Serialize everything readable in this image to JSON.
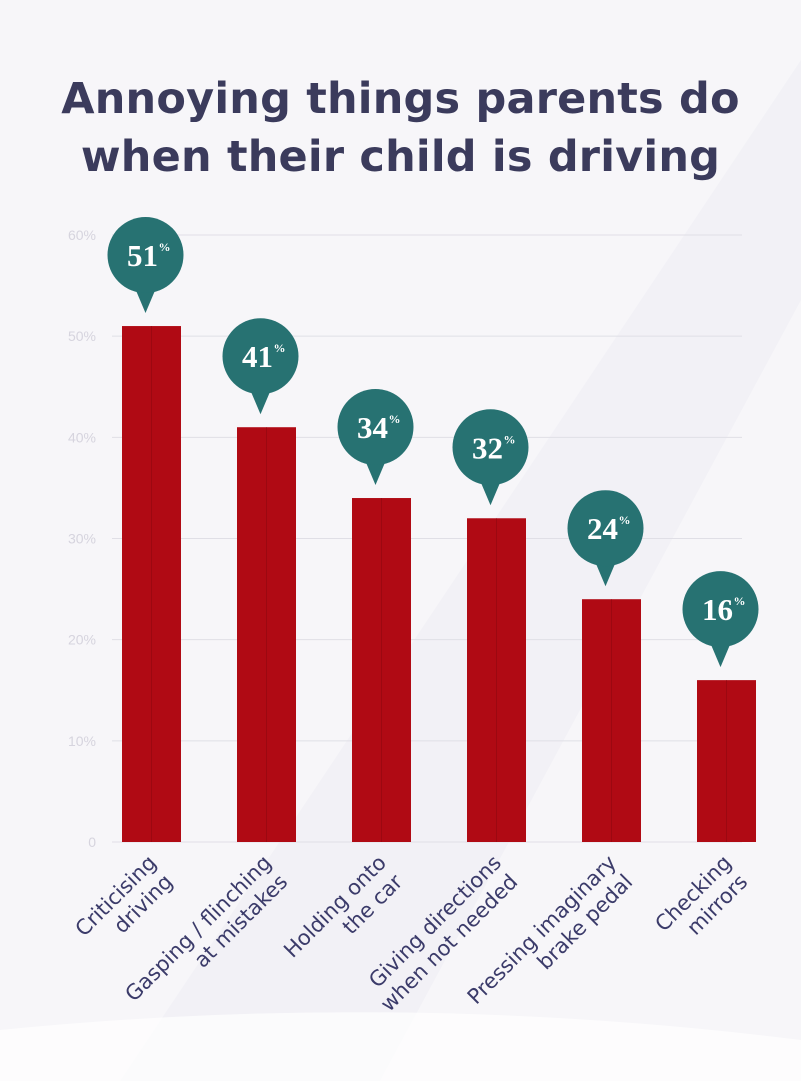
{
  "title_lines": [
    "Annoying things parents do",
    "when their child is driving"
  ],
  "colors": {
    "bar": "#b00a14",
    "bar_dark": "#8f0810",
    "marker": "#277272",
    "title": "#3b3b5c",
    "tick": "#d6d4de",
    "gridline": "#e0dfe6",
    "category_label": "#3b3b6a"
  },
  "chart_data": {
    "type": "bar",
    "title": "Annoying things parents do when their child is driving",
    "categories": [
      [
        "Criticising",
        "driving"
      ],
      [
        "Gasping / flinching",
        "at mistakes"
      ],
      [
        "Holding onto",
        "the car"
      ],
      [
        "Giving directions",
        "when not needed"
      ],
      [
        "Pressing imaginary",
        "brake pedal"
      ],
      [
        "Checking",
        "mirrors"
      ]
    ],
    "values": [
      51,
      41,
      34,
      32,
      24,
      16
    ],
    "value_labels": [
      "51",
      "41",
      "34",
      "32",
      "24",
      "16"
    ],
    "value_suffix": "%",
    "yticks": [
      "0",
      "10%",
      "20%",
      "30%",
      "40%",
      "50%",
      "60%"
    ],
    "ylim": [
      0,
      60
    ],
    "xlabel": "",
    "ylabel": "",
    "grid": true,
    "legend": "none"
  }
}
